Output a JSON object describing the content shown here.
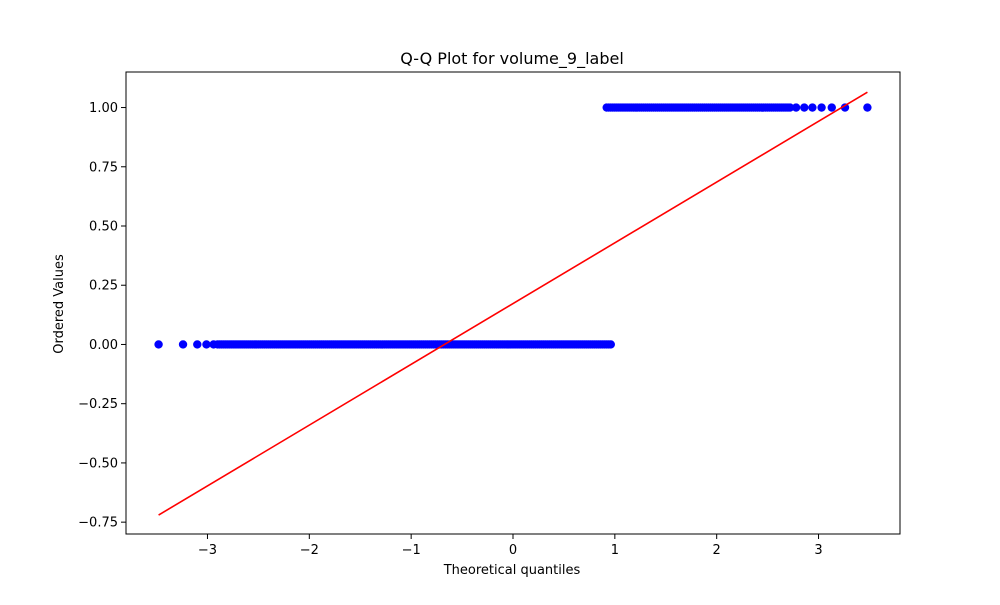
{
  "chart_data": {
    "type": "scatter",
    "title": "Q-Q Plot for volume_9_label",
    "xlabel": "Theoretical quantiles",
    "ylabel": "Ordered Values",
    "xlim": [
      -3.8,
      3.8
    ],
    "ylim": [
      -0.8,
      1.15
    ],
    "xticks": [
      -3,
      -2,
      -1,
      0,
      1,
      2,
      3
    ],
    "xtick_labels": [
      "−3",
      "−2",
      "−1",
      "0",
      "1",
      "2",
      "3"
    ],
    "yticks": [
      -0.75,
      -0.5,
      -0.25,
      0.0,
      0.25,
      0.5,
      0.75,
      1.0
    ],
    "ytick_labels": [
      "−0.75",
      "−0.50",
      "−0.25",
      "0.00",
      "0.25",
      "0.50",
      "0.75",
      "1.00"
    ],
    "grid": false,
    "legend": "none",
    "points_color": "#0000ff",
    "line_color": "#ff0000",
    "points": {
      "low_group": {
        "y": 0.0,
        "outliers_x": [
          -3.48,
          -3.24,
          -3.1,
          -3.01,
          -2.94
        ],
        "dense_from_x": -2.9,
        "dense_to_x": 0.96
      },
      "high_group": {
        "y": 1.0,
        "dense_from_x": 0.92,
        "dense_to_x": 2.72,
        "outliers_x": [
          2.78,
          2.86,
          2.94,
          3.03,
          3.13,
          3.26,
          3.48
        ]
      }
    },
    "fit_line": {
      "x": [
        -3.48,
        3.48
      ],
      "y": [
        -0.72,
        1.065
      ]
    }
  }
}
